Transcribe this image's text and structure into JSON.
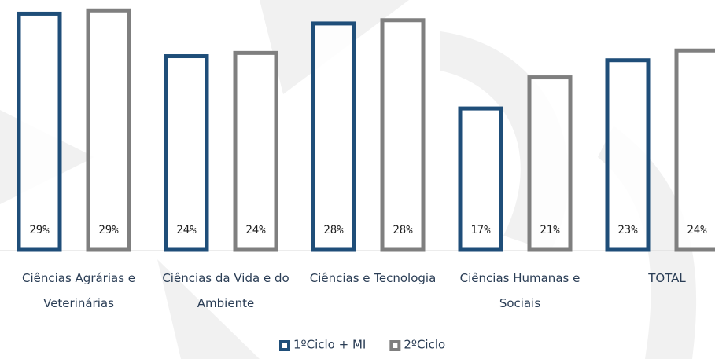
{
  "chart_data": {
    "type": "bar",
    "categories": [
      "Ciências Agrárias e Veterinárias",
      "Ciências da Vida e do Ambiente",
      "Ciências e Tecnologia",
      "Ciências Humanas e Sociais",
      "TOTAL"
    ],
    "series": [
      {
        "name": "1ºCiclo + MI",
        "color": "#1f4e79",
        "values": [
          28.9,
          23.7,
          27.7,
          17.3,
          23.2
        ],
        "value_labels": [
          "29%",
          "24%",
          "28%",
          "17%",
          "23%"
        ]
      },
      {
        "name": "2ºCiclo",
        "color": "#7f7f7f",
        "values": [
          29.3,
          24.1,
          28.1,
          21.1,
          24.4
        ],
        "value_labels": [
          "29%",
          "24%",
          "28%",
          "21%",
          "24%"
        ]
      }
    ],
    "ylim": [
      0,
      30
    ]
  }
}
